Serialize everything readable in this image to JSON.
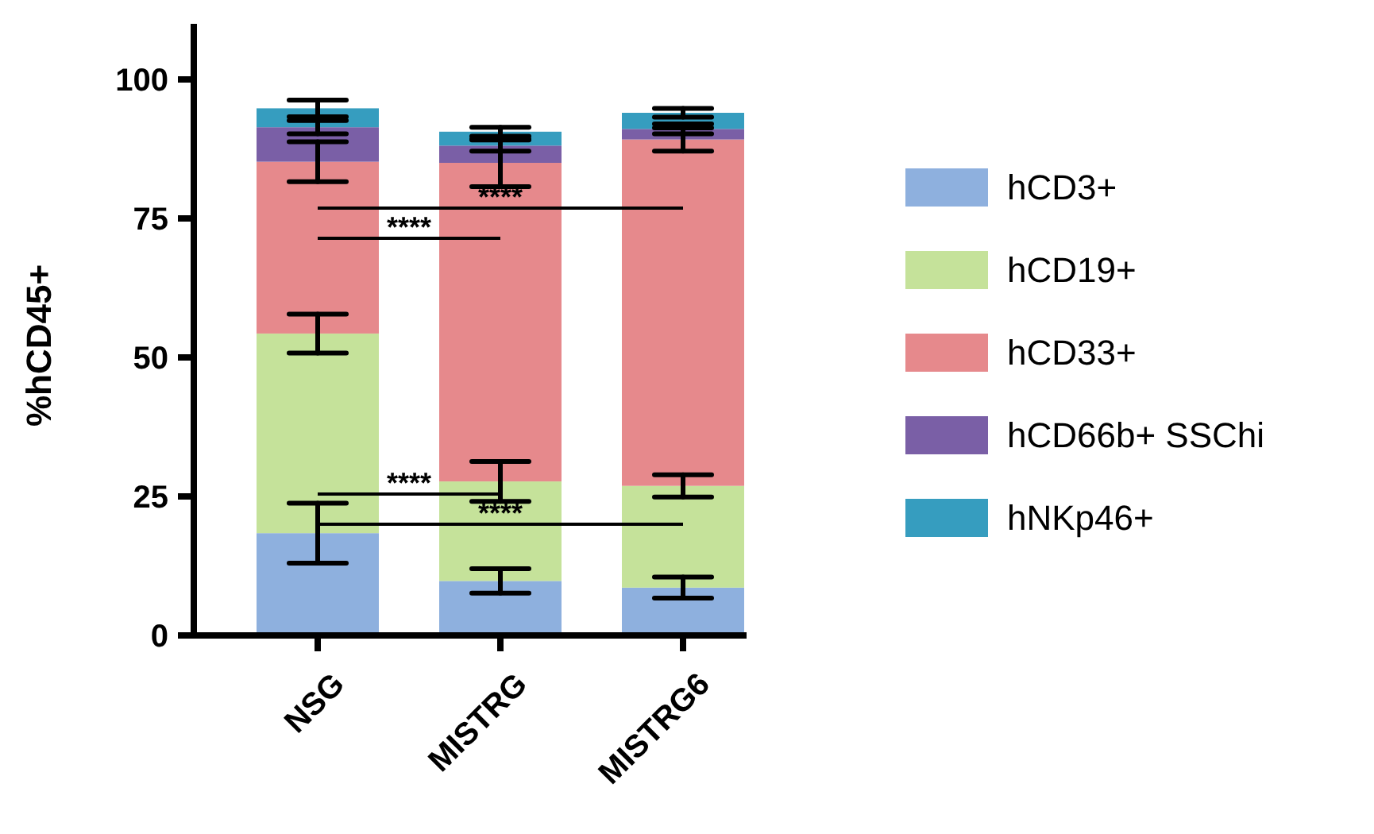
{
  "chart_data": {
    "type": "bar",
    "stacked": true,
    "ylabel": "%hCD45+",
    "categories": [
      "NSG",
      "MISTRG",
      "MISTRG6"
    ],
    "ylim": [
      0,
      110
    ],
    "yticks": [
      0,
      25,
      50,
      75,
      100
    ],
    "grid": false,
    "legend": "right",
    "series": [
      {
        "name": "hCD3+",
        "color": "#8eb0de",
        "values": [
          18.4,
          9.8,
          8.6
        ],
        "errors": [
          5.4,
          2.2,
          1.9
        ]
      },
      {
        "name": "hCD19+",
        "color": "#c5e29a",
        "values": [
          35.9,
          17.9,
          18.3
        ],
        "errors": [
          3.5,
          3.6,
          2.0
        ]
      },
      {
        "name": "hCD33+",
        "color": "#e6898c",
        "values": [
          30.9,
          57.3,
          62.3
        ],
        "errors": [
          3.6,
          4.3,
          2.1
        ]
      },
      {
        "name": "hCD66b+ SSChi",
        "color": "#7a5fa6",
        "values": [
          6.2,
          3.1,
          1.9
        ],
        "errors": [
          1.2,
          1.0,
          0.9
        ]
      },
      {
        "name": "hNKp46+",
        "color": "#369dbf",
        "values": [
          3.4,
          2.5,
          2.9
        ],
        "errors": [
          1.5,
          0.8,
          0.8
        ]
      }
    ],
    "annotations": [
      "****",
      "****",
      "****",
      "****"
    ]
  }
}
